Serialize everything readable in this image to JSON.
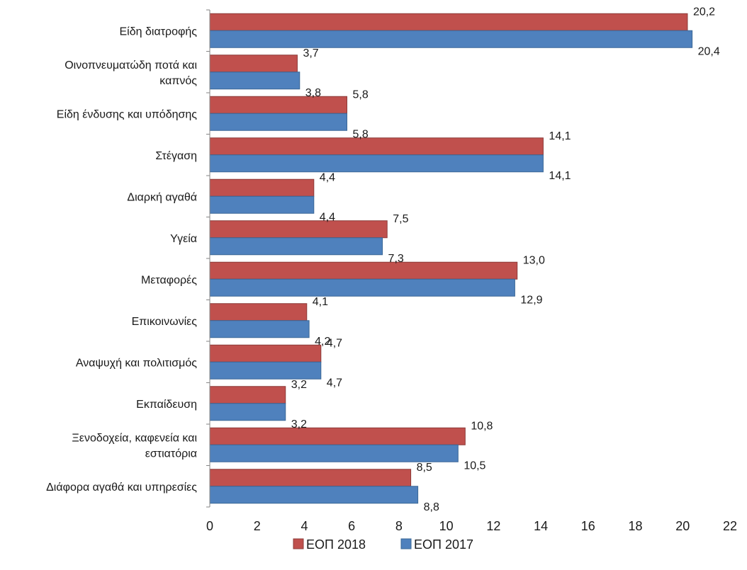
{
  "chart_data": {
    "type": "bar",
    "orientation": "horizontal",
    "categories": [
      [
        "Είδη διατροφής"
      ],
      [
        "Οινοπνευματώδη ποτά και",
        "καπνός"
      ],
      [
        "Είδη ένδυσης και υπόδησης"
      ],
      [
        "Στέγαση"
      ],
      [
        "Διαρκή αγαθά"
      ],
      [
        "Υγεία"
      ],
      [
        "Μεταφορές"
      ],
      [
        "Επικοινωνίες"
      ],
      [
        "Αναψυχή και πολιτισμός"
      ],
      [
        "Εκπαίδευση"
      ],
      [
        "Ξενοδοχεία, καφενεία και",
        "εστιατόρια"
      ],
      [
        "Διάφορα αγαθά και υπηρεσίες"
      ]
    ],
    "series": [
      {
        "name": "ΕΟΠ 2018",
        "color": "#c0504d",
        "values": [
          20.2,
          3.7,
          5.8,
          14.1,
          4.4,
          7.5,
          13.0,
          4.1,
          4.7,
          3.2,
          10.8,
          8.5
        ],
        "labels": [
          "20,2",
          "3,7",
          "5,8",
          "14,1",
          "4,4",
          "7,5",
          "13,0",
          "4,1",
          "4,7",
          "3,2",
          "10,8",
          "8,5"
        ]
      },
      {
        "name": "ΕΟΠ 2017",
        "color": "#4f81bd",
        "values": [
          20.4,
          3.8,
          5.8,
          14.1,
          4.4,
          7.3,
          12.9,
          4.2,
          4.7,
          3.2,
          10.5,
          8.8
        ],
        "labels": [
          "20,4",
          "3,8",
          "5,8",
          "14,1",
          "4,4",
          "7,3",
          "12,9",
          "4,2",
          "4,7",
          "3,2",
          "10,5",
          "8,8"
        ]
      }
    ],
    "xlim": [
      0,
      22
    ],
    "xticks": [
      "0",
      "2",
      "4",
      "6",
      "8",
      "10",
      "12",
      "14",
      "16",
      "18",
      "20",
      "22"
    ],
    "grid": false,
    "legend_position": "bottom"
  }
}
